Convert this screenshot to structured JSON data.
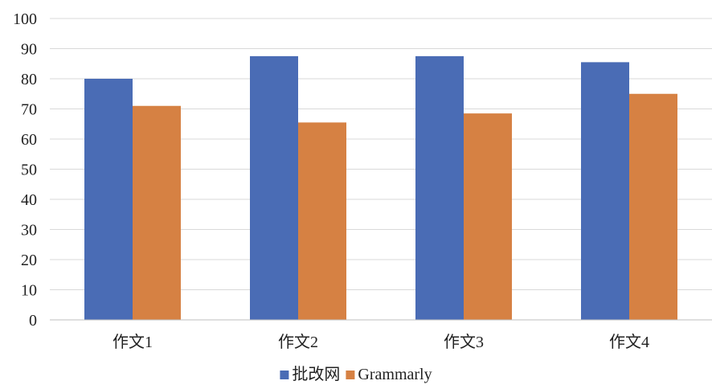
{
  "chart_data": {
    "type": "bar",
    "categories": [
      "作文1",
      "作文2",
      "作文3",
      "作文4"
    ],
    "series": [
      {
        "name": "批改网",
        "values": [
          80,
          87.5,
          87.5,
          85.5
        ],
        "color": "#4a6cb5"
      },
      {
        "name": "Grammarly",
        "values": [
          71,
          65.5,
          68.5,
          75
        ],
        "color": "#d68143"
      }
    ],
    "ylim": [
      0,
      100
    ],
    "yticks": [
      0,
      10,
      20,
      30,
      40,
      50,
      60,
      70,
      80,
      90,
      100
    ],
    "grid": true,
    "legend": "bottom-center",
    "title": "",
    "xlabel": "",
    "ylabel": ""
  }
}
